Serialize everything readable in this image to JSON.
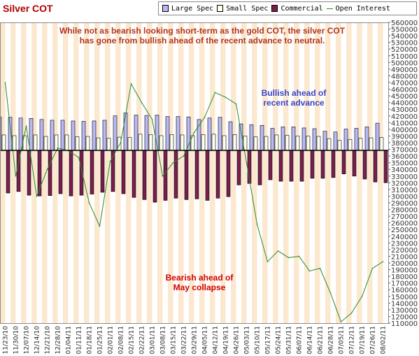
{
  "chart_data": {
    "type": "bar",
    "title": "Silver COT",
    "legend": {
      "placement": "top-right",
      "items": [
        {
          "label": "Large Spec",
          "color": "#b9b9f5",
          "kind": "bar"
        },
        {
          "label": "Small Spec",
          "color": "#ffffee",
          "kind": "bar"
        },
        {
          "label": "Commercial",
          "color": "#7a1f4a",
          "kind": "bar"
        },
        {
          "label": "Open Interest",
          "color": "#2a8a2a",
          "kind": "line"
        }
      ]
    },
    "annotations": [
      {
        "id": "top",
        "text": "While not as bearish looking short-term as the gold COT, the silver COT has gone from bullish ahead of the recent advance to neutral."
      },
      {
        "id": "bull",
        "text": "Bullish ahead of recent advance"
      },
      {
        "id": "bear",
        "text": "Bearish ahead of May collapse"
      }
    ],
    "categories": [
      "11/23/10",
      "11/30/10",
      "12/07/10",
      "12/14/10",
      "12/21/10",
      "12/28/10",
      "01/04/11",
      "01/11/11",
      "01/18/11",
      "01/25/11",
      "02/01/11",
      "02/08/11",
      "02/15/11",
      "02/22/11",
      "03/01/11",
      "03/08/11",
      "03/15/11",
      "03/22/11",
      "03/29/11",
      "04/05/11",
      "04/12/11",
      "04/19/11",
      "04/26/11",
      "05/03/11",
      "05/10/11",
      "05/17/11",
      "05/24/11",
      "05/31/11",
      "06/07/11",
      "06/14/11",
      "06/21/11",
      "06/28/11",
      "07/05/11",
      "07/12/11",
      "07/19/11",
      "07/26/11",
      "08/02/11"
    ],
    "x_tick_labels": [
      "11/23/10",
      "11/30/10",
      "12/07/10",
      "12/14/10",
      "12/21/10",
      "12/28/10",
      "01/04/11",
      "01/11/11",
      "01/18/11",
      "01/25/11",
      "02/01/11",
      "02/08/11",
      "02/15/11",
      "02/22/11",
      "03/01/11",
      "03/08/11",
      "03/15/11",
      "03/22/11",
      "03/29/11",
      "04/05/11",
      "04/12/11",
      "04/19/11",
      "04/26/11",
      "05/03/11",
      "05/10/11",
      "05/17/11",
      "05/24/11",
      "05/31/11",
      "06/07/11",
      "06/14/11",
      "06/21/11",
      "06/28/11",
      "07/05/11",
      "07/12/11",
      "07/19/11",
      "07/26/11",
      "08/02/11"
    ],
    "y_right": {
      "range": [
        110000,
        560000
      ],
      "ticks": [
        110000,
        120000,
        130000,
        140000,
        150000,
        160000,
        170000,
        180000,
        190000,
        200000,
        210000,
        220000,
        230000,
        240000,
        250000,
        260000,
        270000,
        280000,
        290000,
        300000,
        310000,
        320000,
        330000,
        340000,
        350000,
        360000,
        370000,
        380000,
        390000,
        400000,
        410000,
        420000,
        430000,
        440000,
        450000,
        460000,
        470000,
        480000,
        490000,
        500000,
        510000,
        520000,
        530000,
        540000,
        550000,
        560000
      ],
      "tick_labels": [
        {
          "value": 110000,
          "label": "110000"
        },
        {
          "value": 120000,
          "label": "120000"
        },
        {
          "value": 130000,
          "label": "130000"
        },
        {
          "value": 140000,
          "label": "140000"
        },
        {
          "value": 150000,
          "label": "150000"
        },
        {
          "value": 160000,
          "label": "160000"
        },
        {
          "value": 170000,
          "label": "170000"
        },
        {
          "value": 180000,
          "label": "180000"
        },
        {
          "value": 190000,
          "label": "190000"
        },
        {
          "value": 200000,
          "label": "200000"
        },
        {
          "value": 210000,
          "label": "210000"
        },
        {
          "value": 220000,
          "label": "220000"
        },
        {
          "value": 230000,
          "label": "230000"
        },
        {
          "value": 240000,
          "label": "240000"
        },
        {
          "value": 250000,
          "label": "250000"
        },
        {
          "value": 260000,
          "label": "260000"
        },
        {
          "value": 270000,
          "label": "270000"
        },
        {
          "value": 280000,
          "label": "280000"
        },
        {
          "value": 290000,
          "label": "290000"
        },
        {
          "value": 300000,
          "label": "300000"
        },
        {
          "value": 310000,
          "label": "310000"
        },
        {
          "value": 320000,
          "label": "320000"
        },
        {
          "value": 330000,
          "label": "330000"
        },
        {
          "value": 340000,
          "label": "340000"
        },
        {
          "value": 350000,
          "label": "350000"
        },
        {
          "value": 360000,
          "label": "360000"
        },
        {
          "value": 370000,
          "label": "370000"
        },
        {
          "value": 380000,
          "label": "380000"
        },
        {
          "value": 390000,
          "label": "390000"
        },
        {
          "value": 400000,
          "label": "400000"
        },
        {
          "value": 410000,
          "label": "410000"
        },
        {
          "value": 420000,
          "label": "420000"
        },
        {
          "value": 430000,
          "label": "430000"
        },
        {
          "value": 440000,
          "label": "440000"
        },
        {
          "value": 450000,
          "label": "450000"
        },
        {
          "value": 460000,
          "label": "460000"
        },
        {
          "value": 470000,
          "label": "470000"
        },
        {
          "value": 480000,
          "label": "480000"
        },
        {
          "value": 490000,
          "label": "490000"
        },
        {
          "value": 500000,
          "label": "500000"
        },
        {
          "value": 510000,
          "label": "510000"
        },
        {
          "value": 520000,
          "label": "520000"
        },
        {
          "value": 530000,
          "label": "530000"
        },
        {
          "value": 540000,
          "label": "540000"
        },
        {
          "value": 550000,
          "label": "550000"
        },
        {
          "value": 560000,
          "label": "560000"
        }
      ]
    },
    "zero_line": 0,
    "series": [
      {
        "name": "Large Spec",
        "values": [
          45500,
          45000,
          44000,
          43500,
          42000,
          41000,
          41000,
          40000,
          39500,
          40000,
          41000,
          47000,
          51000,
          48000,
          47500,
          48000,
          46000,
          46000,
          45500,
          42000,
          44000,
          45000,
          39000,
          36000,
          35000,
          34000,
          30000,
          32000,
          32000,
          30500,
          29500,
          26000,
          25000,
          29000,
          30000,
          32000,
          37000
        ]
      },
      {
        "name": "Small Spec",
        "values": [
          21000,
          20000,
          20000,
          21000,
          19000,
          21000,
          21000,
          18500,
          19000,
          17000,
          16500,
          18000,
          17500,
          22000,
          21500,
          20000,
          21500,
          21000,
          20000,
          21500,
          22000,
          20000,
          21500,
          19500,
          18500,
          19000,
          21000,
          20500,
          19500,
          19500,
          19000,
          16000,
          13500,
          15000,
          16500,
          17000,
          17500
        ]
      },
      {
        "name": "Commercial",
        "values": [
          -58000,
          -56000,
          -61000,
          -62000,
          -61500,
          -59000,
          -62000,
          -61000,
          -59500,
          -57000,
          -56000,
          -59000,
          -64000,
          -67000,
          -70500,
          -68000,
          -65000,
          -67000,
          -66000,
          -68000,
          -65000,
          -63000,
          -47000,
          -45000,
          -47000,
          -40000,
          -42000,
          -42000,
          -42000,
          -38000,
          -38000,
          -37000,
          -32000,
          -35000,
          -39000,
          -43000,
          -44000
        ]
      },
      {
        "name": "Open Interest",
        "values": [
          470000,
          330000,
          405000,
          300000,
          340000,
          372000,
          368000,
          358000,
          290000,
          255000,
          352000,
          380000,
          468000,
          440000,
          415000,
          330000,
          350000,
          360000,
          395000,
          418000,
          455000,
          448000,
          438000,
          350000,
          258000,
          202000,
          218000,
          208000,
          210000,
          188000,
          192000,
          155000,
          112000,
          125000,
          150000,
          192000,
          202000
        ]
      }
    ],
    "grid": true,
    "grid_axis": "x"
  }
}
